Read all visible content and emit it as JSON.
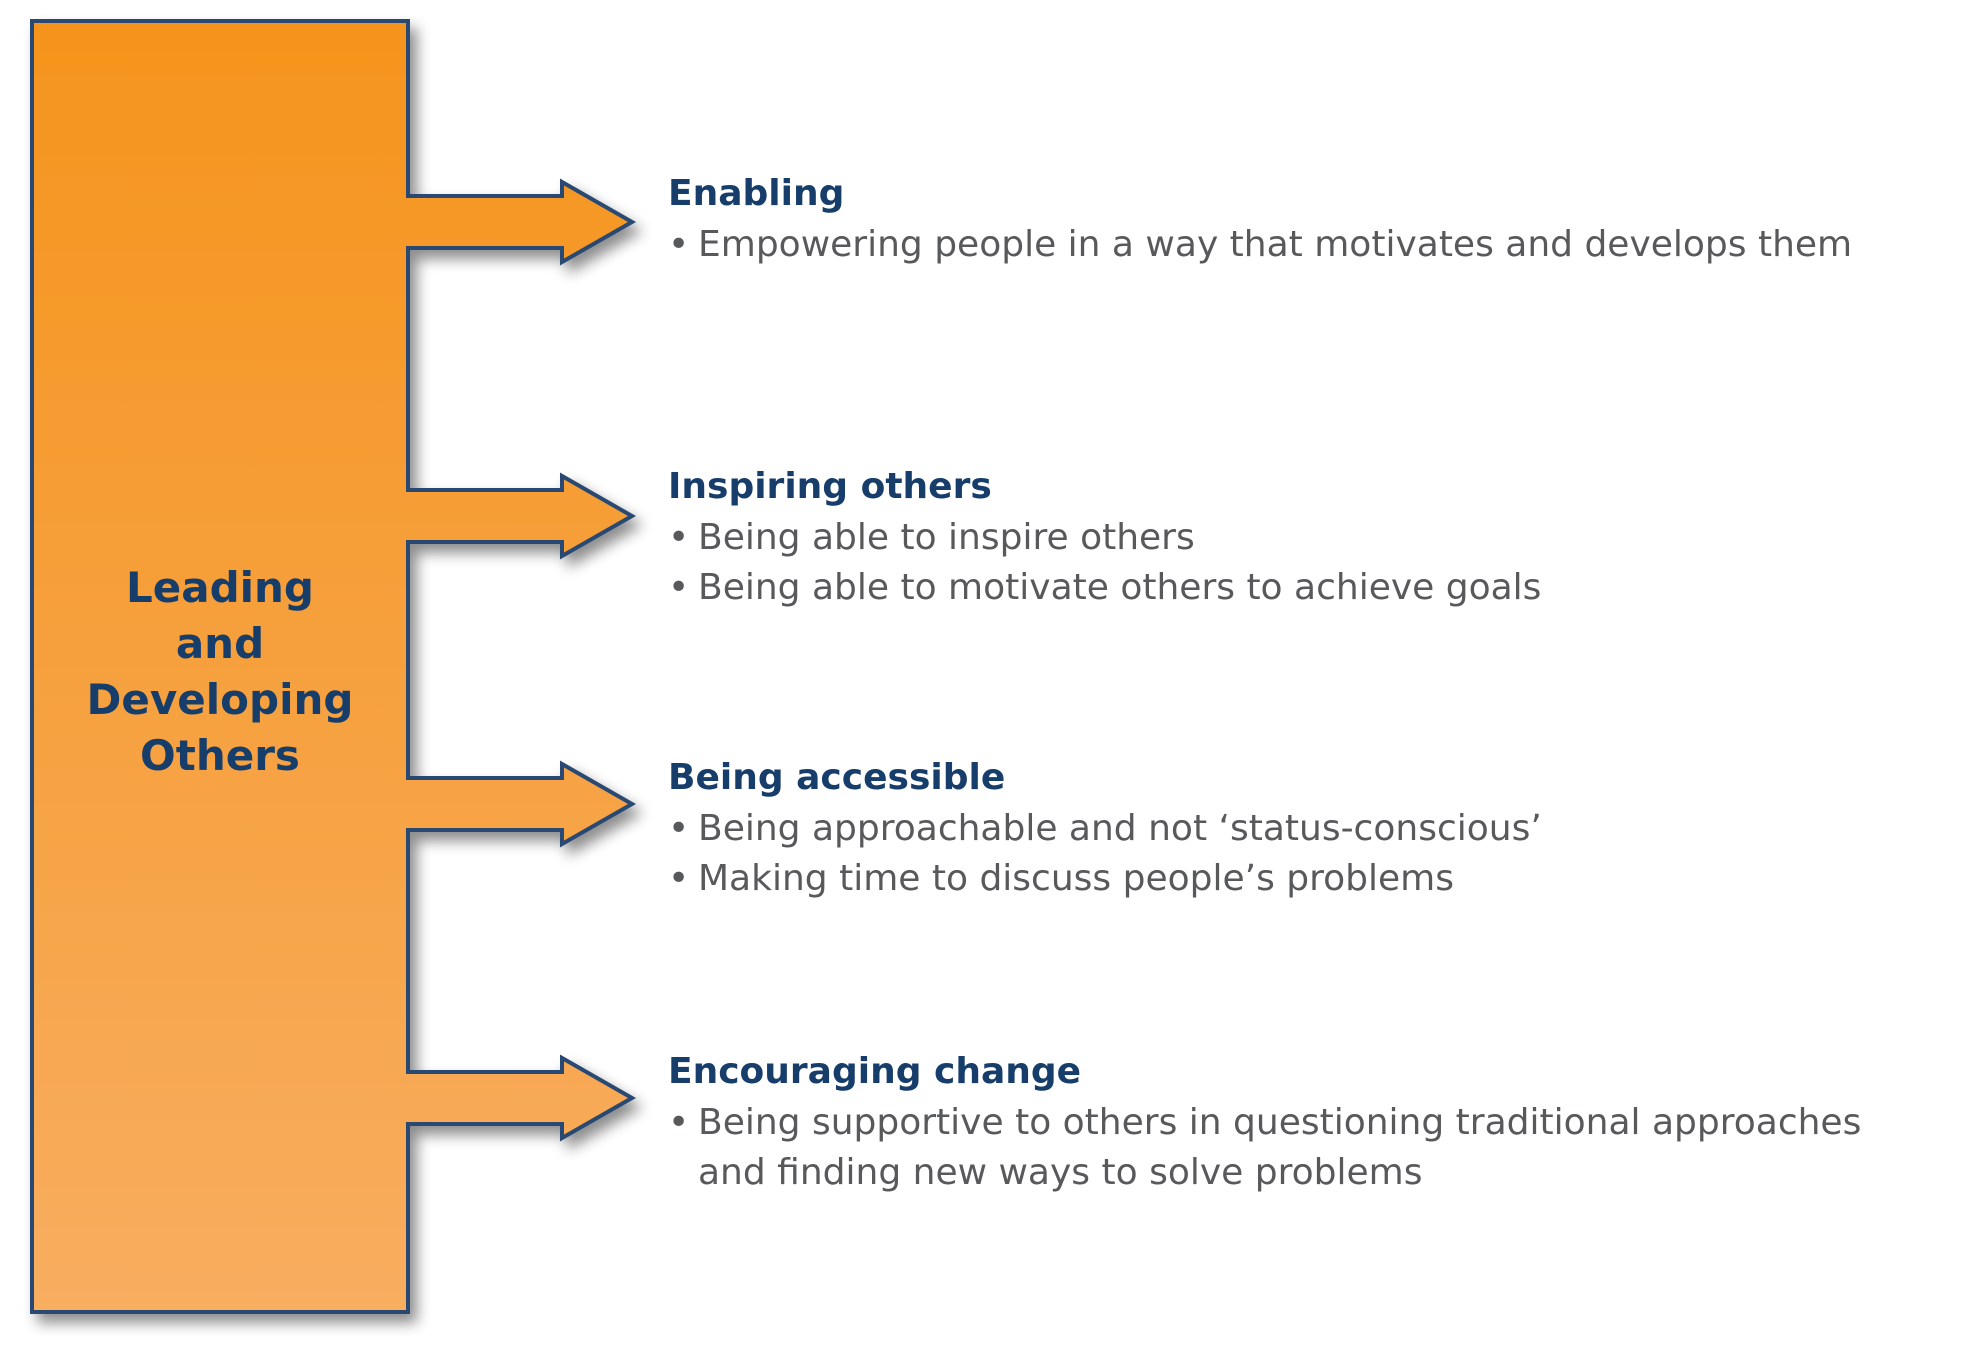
{
  "diagram": {
    "main_box": {
      "lines": [
        "Leading",
        "and",
        "Developing",
        "Others"
      ],
      "fill_top": "#f5941d",
      "fill_bottom": "#f8ad5f",
      "border_color": "#2a4a72",
      "text_color": "#173d6b"
    },
    "bullet_symbol": "•",
    "items": [
      {
        "title": "Enabling",
        "bullets": [
          "Empowering people in a way that motivates and develops them"
        ]
      },
      {
        "title": "Inspiring others",
        "bullets": [
          "Being able to inspire others",
          "Being able to motivate others to achieve goals"
        ]
      },
      {
        "title": "Being accessible",
        "bullets": [
          "Being approachable and not ‘status-conscious’",
          "Making time to discuss people’s problems"
        ]
      },
      {
        "title": "Encouraging change",
        "bullets": [
          "Being supportive to others in questioning traditional approaches",
          "and finding new ways to solve problems"
        ]
      }
    ],
    "colors": {
      "title": "#173d6b",
      "body_text": "#58595b",
      "outline": "#2a4a72"
    }
  }
}
